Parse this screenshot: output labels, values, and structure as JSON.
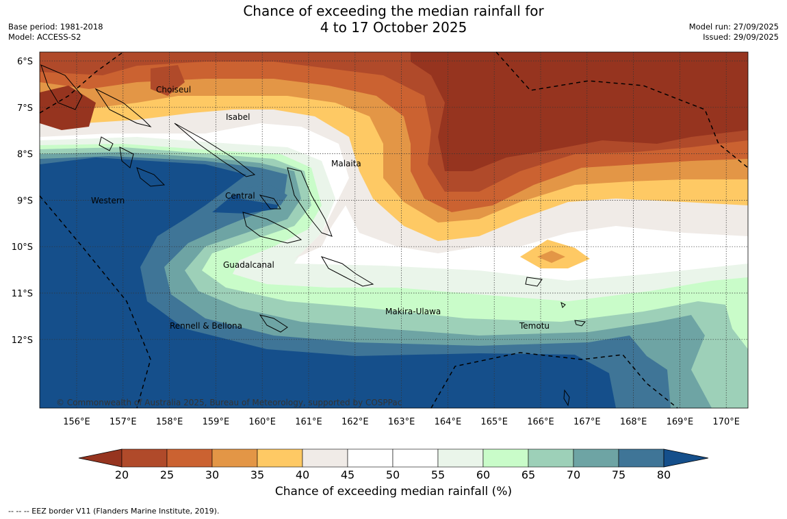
{
  "title": {
    "line1": "Chance of exceeding the median rainfall for",
    "line2": "4 to 17 October 2025"
  },
  "meta_left": {
    "base_period": "Base period: 1981-2018",
    "model": "Model: ACCESS-S2"
  },
  "meta_right": {
    "model_run": "Model run: 27/09/2025",
    "issued": "Issued: 29/09/2025"
  },
  "map": {
    "lat_labels": [
      "6°S",
      "7°S",
      "8°S",
      "9°S",
      "10°S",
      "11°S",
      "12°S"
    ],
    "lon_labels": [
      "156°E",
      "157°E",
      "158°E",
      "159°E",
      "160°E",
      "161°E",
      "162°E",
      "163°E",
      "164°E",
      "165°E",
      "166°E",
      "167°E",
      "168°E",
      "169°E",
      "170°E"
    ],
    "region_labels": [
      "Choiseul",
      "Isabel",
      "Malaita",
      "Central",
      "Western",
      "Guadalcanal",
      "Makira-Ulawa",
      "Temotu",
      "Rennell & Bellona"
    ],
    "copyright": "© Commonwealth of Australia 2025, Bureau of Meteorology, supported by COSPPac"
  },
  "colorbar": {
    "ticks": [
      "20",
      "25",
      "30",
      "35",
      "40",
      "45",
      "50",
      "55",
      "60",
      "65",
      "70",
      "75",
      "80"
    ],
    "label": "Chance of exceeding median rainfall (%)",
    "colors": {
      "below20": "#96341f",
      "c20_25": "#b04a2a",
      "c25_30": "#cb6231",
      "c30_35": "#e39646",
      "c35_40": "#fec964",
      "c40_45": "#f0ebe7",
      "c45_50": "#ffffff",
      "c50_55": "#ffffff",
      "c55_60": "#eaf5ea",
      "c60_65": "#c9fcc9",
      "c65_70": "#9dd0b8",
      "c70_75": "#6ea4a4",
      "c75_80": "#3f7597",
      "above80": "#154f8b"
    }
  },
  "footer": "--  --  -- EEZ border V11 (Flanders Marine Institute, 2019)."
}
